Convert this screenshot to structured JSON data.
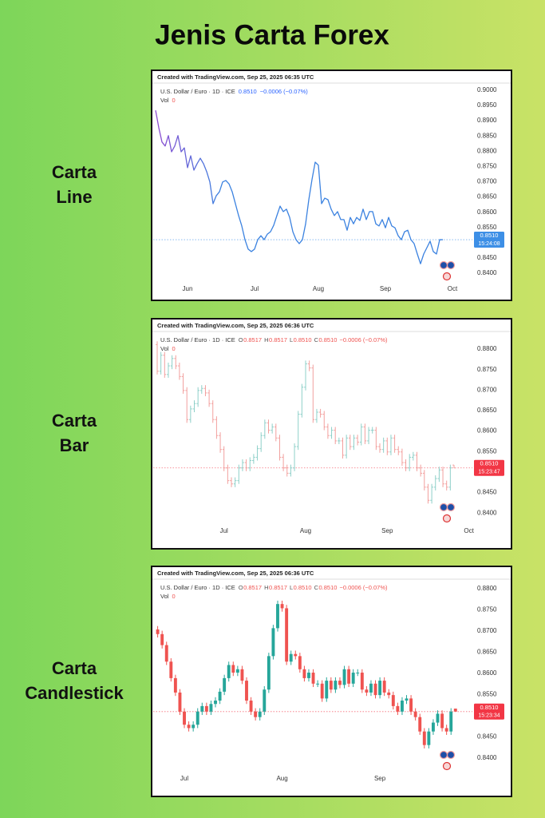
{
  "heading": "Jenis Carta Forex",
  "chart_data": [
    {
      "type": "line",
      "label": [
        "Carta",
        "Line"
      ],
      "source": "Created with TradingView.com, Sep 25, 2025 06:35 UTC",
      "title": "U.S. Dollar / Euro · 1D · ICE",
      "legend_values": [
        "0.8510",
        "−0.0006 (−0.07%)"
      ],
      "legend_color": "#2962ff",
      "volume_label": "Vol",
      "volume": 0,
      "colors": [
        "#8e4bd0",
        "#3b82e0"
      ],
      "last_price": {
        "value": 0.851,
        "label": "0.8510"
      },
      "countdown": "15:24:08",
      "last_price_color": "#3d8fe6",
      "ylim": [
        0.8374,
        0.9018
      ],
      "yticks": [
        {
          "value": 0.84,
          "label": "0.8400"
        },
        {
          "value": 0.845,
          "label": "0.8450"
        },
        {
          "value": 0.85,
          "label": "0.8500"
        },
        {
          "value": 0.855,
          "label": "0.8550"
        },
        {
          "value": 0.86,
          "label": "0.8600"
        },
        {
          "value": 0.865,
          "label": "0.8650"
        },
        {
          "value": 0.87,
          "label": "0.8700"
        },
        {
          "value": 0.875,
          "label": "0.8750"
        },
        {
          "value": 0.88,
          "label": "0.8800"
        },
        {
          "value": 0.885,
          "label": "0.8850"
        },
        {
          "value": 0.89,
          "label": "0.8900"
        },
        {
          "value": 0.895,
          "label": "0.8950"
        },
        {
          "value": 0.9,
          "label": "0.9000"
        }
      ],
      "categories": [
        null,
        null,
        null,
        null,
        null,
        null,
        null,
        null,
        null,
        null,
        "Jun",
        null,
        null,
        null,
        null,
        null,
        null,
        null,
        null,
        null,
        null,
        null,
        null,
        null,
        null,
        null,
        null,
        null,
        null,
        null,
        null,
        "Jul",
        null,
        null,
        null,
        null,
        null,
        null,
        null,
        null,
        null,
        null,
        null,
        null,
        null,
        null,
        null,
        null,
        null,
        null,
        null,
        "Aug",
        null,
        null,
        null,
        null,
        null,
        null,
        null,
        null,
        null,
        null,
        null,
        null,
        null,
        null,
        null,
        null,
        null,
        null,
        null,
        null,
        "Sep",
        null,
        null,
        null,
        null,
        null,
        null,
        null,
        null,
        null,
        null,
        null,
        null,
        null,
        null,
        null,
        null,
        null,
        null,
        null,
        null,
        "Oct"
      ],
      "values": [
        0.8934,
        0.8877,
        0.883,
        0.8817,
        0.8851,
        0.8798,
        0.8817,
        0.8851,
        0.8798,
        0.8811,
        0.8746,
        0.8785,
        0.8738,
        0.8759,
        0.8777,
        0.8759,
        0.8733,
        0.8699,
        0.8628,
        0.8654,
        0.8667,
        0.8699,
        0.8704,
        0.8693,
        0.8667,
        0.8628,
        0.8589,
        0.8555,
        0.851,
        0.8479,
        0.8471,
        0.8479,
        0.851,
        0.8523,
        0.851,
        0.8528,
        0.8536,
        0.8557,
        0.8589,
        0.862,
        0.8602,
        0.861,
        0.8583,
        0.8536,
        0.851,
        0.8497,
        0.851,
        0.8562,
        0.8641,
        0.8707,
        0.8764,
        0.8754,
        0.8628,
        0.8646,
        0.8641,
        0.861,
        0.8589,
        0.8602,
        0.8576,
        0.8576,
        0.8541,
        0.8583,
        0.8562,
        0.8583,
        0.8573,
        0.861,
        0.8576,
        0.8602,
        0.8602,
        0.8562,
        0.8555,
        0.8576,
        0.8549,
        0.8583,
        0.8555,
        0.8549,
        0.8523,
        0.851,
        0.8536,
        0.8541,
        0.851,
        0.8497,
        0.8463,
        0.8431,
        0.8463,
        0.8484,
        0.8505,
        0.8471,
        0.8463,
        0.851,
        0.851,
        null,
        null,
        null
      ]
    },
    {
      "type": "ohlc",
      "label": [
        "Carta",
        "Bar"
      ],
      "source": "Created with TradingView.com, Sep 25, 2025 06:36 UTC",
      "title": "U.S. Dollar / Euro · 1D · ICE",
      "ohlc_legend": [
        {
          "key": "O",
          "value": "0.8517"
        },
        {
          "key": "H",
          "value": "0.8517"
        },
        {
          "key": "L",
          "value": "0.8510"
        },
        {
          "key": "C",
          "value": "0.8510"
        }
      ],
      "legend_values": [
        "−0.0006 (−0.07%)"
      ],
      "legend_color": "#ef5350",
      "volume_label": "Vol",
      "volume": 0,
      "up_color": "#8fd0c9",
      "down_color": "#f2a09e",
      "last_price": {
        "value": 0.851,
        "label": "0.8510"
      },
      "countdown": "15:23:47",
      "last_price_color": "#f23645",
      "ylim": [
        0.8375,
        0.8839
      ],
      "yticks": [
        {
          "value": 0.84,
          "label": "0.8400"
        },
        {
          "value": 0.845,
          "label": "0.8450"
        },
        {
          "value": 0.85,
          "label": "0.8500"
        },
        {
          "value": 0.855,
          "label": "0.8550"
        },
        {
          "value": 0.86,
          "label": "0.8600"
        },
        {
          "value": 0.865,
          "label": "0.8650"
        },
        {
          "value": 0.87,
          "label": "0.8700"
        },
        {
          "value": 0.875,
          "label": "0.8750"
        },
        {
          "value": 0.88,
          "label": "0.8800"
        }
      ],
      "categories": [
        null,
        null,
        null,
        null,
        null,
        null,
        null,
        null,
        null,
        null,
        null,
        null,
        null,
        null,
        null,
        null,
        null,
        null,
        "Jul",
        null,
        null,
        null,
        null,
        null,
        null,
        null,
        null,
        null,
        null,
        null,
        null,
        null,
        null,
        null,
        null,
        null,
        null,
        null,
        null,
        null,
        "Aug",
        null,
        null,
        null,
        null,
        null,
        null,
        null,
        null,
        null,
        null,
        null,
        null,
        null,
        null,
        null,
        null,
        null,
        null,
        null,
        null,
        null,
        "Sep",
        null,
        null,
        null,
        null,
        null,
        null,
        null,
        null,
        null,
        null,
        null,
        null,
        null,
        null,
        null,
        null,
        null,
        null,
        null,
        null,
        null,
        "Oct"
      ],
      "open": [
        0.8811,
        0.8746,
        0.8785,
        0.8738,
        0.8759,
        0.8777,
        0.8759,
        0.8733,
        0.8699,
        0.8628,
        0.8654,
        0.8667,
        0.8699,
        0.8704,
        0.8693,
        0.8667,
        0.8628,
        0.8589,
        0.8555,
        0.851,
        0.8479,
        0.8471,
        0.8479,
        0.851,
        0.8523,
        0.851,
        0.8528,
        0.8536,
        0.8557,
        0.8589,
        0.862,
        0.8602,
        0.861,
        0.8583,
        0.8536,
        0.851,
        0.8497,
        0.851,
        0.8562,
        0.8641,
        0.8707,
        0.8764,
        0.8754,
        0.8628,
        0.8646,
        0.8641,
        0.861,
        0.8589,
        0.8602,
        0.8576,
        0.8576,
        0.8541,
        0.8583,
        0.8562,
        0.8583,
        0.8573,
        0.861,
        0.8576,
        0.8602,
        0.8602,
        0.8562,
        0.8555,
        0.8576,
        0.8549,
        0.8583,
        0.8555,
        0.8549,
        0.8523,
        0.851,
        0.8536,
        0.8541,
        0.851,
        0.8497,
        0.8463,
        0.8431,
        0.8463,
        0.8484,
        0.8505,
        0.8471,
        0.8463,
        0.8517,
        null,
        null,
        null,
        null
      ],
      "high": [
        0.8819,
        0.8793,
        0.8793,
        0.8767,
        0.8785,
        0.8785,
        0.8767,
        0.8741,
        0.8707,
        0.8662,
        0.8675,
        0.8707,
        0.8712,
        0.8712,
        0.8701,
        0.8675,
        0.8636,
        0.8597,
        0.8563,
        0.8518,
        0.8487,
        0.8487,
        0.8518,
        0.8531,
        0.8531,
        0.8536,
        0.8544,
        0.8565,
        0.8597,
        0.8628,
        0.8628,
        0.8618,
        0.8618,
        0.8591,
        0.8544,
        0.8518,
        0.8518,
        0.857,
        0.8649,
        0.8715,
        0.8772,
        0.8772,
        0.8762,
        0.8654,
        0.8654,
        0.8649,
        0.8618,
        0.861,
        0.861,
        0.8584,
        0.8584,
        0.8591,
        0.8591,
        0.8591,
        0.8591,
        0.8618,
        0.8618,
        0.861,
        0.861,
        0.861,
        0.857,
        0.8584,
        0.8584,
        0.8591,
        0.8591,
        0.8563,
        0.8557,
        0.8531,
        0.8544,
        0.8549,
        0.8549,
        0.8518,
        0.8505,
        0.8471,
        0.8471,
        0.8492,
        0.8513,
        0.8513,
        0.8479,
        0.8518,
        0.8517,
        null,
        null,
        null,
        null
      ],
      "low": [
        0.8738,
        0.8738,
        0.873,
        0.873,
        0.8751,
        0.8751,
        0.8725,
        0.8691,
        0.862,
        0.862,
        0.8646,
        0.8659,
        0.8691,
        0.8685,
        0.8659,
        0.862,
        0.8581,
        0.8547,
        0.8502,
        0.8471,
        0.8463,
        0.8463,
        0.8471,
        0.8502,
        0.8502,
        0.8502,
        0.852,
        0.8528,
        0.8549,
        0.8581,
        0.8594,
        0.8594,
        0.8575,
        0.8528,
        0.8502,
        0.8489,
        0.8489,
        0.8502,
        0.8554,
        0.8633,
        0.8699,
        0.8746,
        0.862,
        0.862,
        0.8633,
        0.8602,
        0.8581,
        0.8581,
        0.8568,
        0.8568,
        0.8533,
        0.8533,
        0.8554,
        0.8554,
        0.8565,
        0.8565,
        0.8568,
        0.8568,
        0.8594,
        0.8554,
        0.8547,
        0.8547,
        0.8541,
        0.8541,
        0.8547,
        0.8541,
        0.8515,
        0.8502,
        0.8502,
        0.8528,
        0.8502,
        0.8489,
        0.8455,
        0.8423,
        0.8423,
        0.8455,
        0.8476,
        0.8463,
        0.8455,
        0.8455,
        0.851,
        null,
        null,
        null,
        null
      ],
      "close": [
        0.8746,
        0.8785,
        0.8738,
        0.8759,
        0.8777,
        0.8759,
        0.8733,
        0.8699,
        0.8628,
        0.8654,
        0.8667,
        0.8699,
        0.8704,
        0.8693,
        0.8667,
        0.8628,
        0.8589,
        0.8555,
        0.851,
        0.8479,
        0.8471,
        0.8479,
        0.851,
        0.8523,
        0.851,
        0.8528,
        0.8536,
        0.8557,
        0.8589,
        0.862,
        0.8602,
        0.861,
        0.8583,
        0.8536,
        0.851,
        0.8497,
        0.851,
        0.8562,
        0.8641,
        0.8707,
        0.8764,
        0.8754,
        0.8628,
        0.8646,
        0.8641,
        0.861,
        0.8589,
        0.8602,
        0.8576,
        0.8576,
        0.8541,
        0.8583,
        0.8562,
        0.8583,
        0.8573,
        0.861,
        0.8576,
        0.8602,
        0.8602,
        0.8562,
        0.8555,
        0.8576,
        0.8549,
        0.8583,
        0.8555,
        0.8549,
        0.8523,
        0.851,
        0.8536,
        0.8541,
        0.851,
        0.8497,
        0.8463,
        0.8431,
        0.8463,
        0.8484,
        0.8505,
        0.8471,
        0.8463,
        0.851,
        0.851,
        null,
        null,
        null,
        null
      ]
    },
    {
      "type": "candlestick",
      "label": [
        "Carta",
        "Candlestick"
      ],
      "source": "Created with TradingView.com, Sep 25, 2025 06:36 UTC",
      "title": "U.S. Dollar / Euro · 1D · ICE",
      "ohlc_legend": [
        {
          "key": "O",
          "value": "0.8517"
        },
        {
          "key": "H",
          "value": "0.8517"
        },
        {
          "key": "L",
          "value": "0.8510"
        },
        {
          "key": "C",
          "value": "0.8510"
        }
      ],
      "legend_values": [
        "−0.0006 (−0.07%)"
      ],
      "legend_color": "#ef5350",
      "volume_label": "Vol",
      "volume": 0,
      "up_color": "#26a69a",
      "down_color": "#ef5350",
      "last_price": {
        "value": 0.851,
        "label": "0.8510"
      },
      "countdown": "15:23:34",
      "last_price_color": "#f23645",
      "ylim": [
        0.837,
        0.8819
      ],
      "yticks": [
        {
          "value": 0.84,
          "label": "0.8400"
        },
        {
          "value": 0.845,
          "label": "0.8450"
        },
        {
          "value": 0.85,
          "label": "0.8500"
        },
        {
          "value": 0.855,
          "label": "0.8550"
        },
        {
          "value": 0.86,
          "label": "0.8600"
        },
        {
          "value": 0.865,
          "label": "0.8650"
        },
        {
          "value": 0.87,
          "label": "0.8700"
        },
        {
          "value": 0.875,
          "label": "0.8750"
        },
        {
          "value": 0.88,
          "label": "0.8800"
        }
      ],
      "categories": [
        null,
        null,
        null,
        null,
        null,
        null,
        "Jul",
        null,
        null,
        null,
        null,
        null,
        null,
        null,
        null,
        null,
        null,
        null,
        null,
        null,
        null,
        null,
        null,
        null,
        null,
        null,
        null,
        null,
        "Aug",
        null,
        null,
        null,
        null,
        null,
        null,
        null,
        null,
        null,
        null,
        null,
        null,
        null,
        null,
        null,
        null,
        null,
        null,
        null,
        null,
        null,
        "Sep",
        null,
        null,
        null,
        null,
        null,
        null,
        null,
        null,
        null,
        null,
        null,
        null,
        null,
        null,
        null,
        null,
        null
      ],
      "open": [
        0.8704,
        0.8693,
        0.8667,
        0.8628,
        0.8589,
        0.8555,
        0.851,
        0.8479,
        0.8471,
        0.8479,
        0.851,
        0.8523,
        0.851,
        0.8528,
        0.8536,
        0.8557,
        0.8589,
        0.862,
        0.8602,
        0.861,
        0.8583,
        0.8536,
        0.851,
        0.8497,
        0.851,
        0.8562,
        0.8641,
        0.8707,
        0.8764,
        0.8754,
        0.8628,
        0.8646,
        0.8641,
        0.861,
        0.8589,
        0.8602,
        0.8576,
        0.8576,
        0.8541,
        0.8583,
        0.8562,
        0.8583,
        0.8573,
        0.861,
        0.8576,
        0.8602,
        0.8602,
        0.8562,
        0.8555,
        0.8576,
        0.8549,
        0.8583,
        0.8555,
        0.8549,
        0.8523,
        0.851,
        0.8536,
        0.8541,
        0.851,
        0.8497,
        0.8463,
        0.8431,
        0.8463,
        0.8484,
        0.8505,
        0.8471,
        0.8463,
        0.8517
      ],
      "high": [
        0.8712,
        0.8701,
        0.8675,
        0.8636,
        0.8597,
        0.8563,
        0.8518,
        0.8487,
        0.8487,
        0.8518,
        0.8531,
        0.8531,
        0.8536,
        0.8544,
        0.8565,
        0.8597,
        0.8628,
        0.8628,
        0.8618,
        0.8618,
        0.8591,
        0.8544,
        0.8518,
        0.8518,
        0.857,
        0.8649,
        0.8715,
        0.8772,
        0.8772,
        0.8762,
        0.8654,
        0.8654,
        0.8649,
        0.8618,
        0.861,
        0.861,
        0.8584,
        0.8584,
        0.8591,
        0.8591,
        0.8591,
        0.8591,
        0.8618,
        0.8618,
        0.861,
        0.861,
        0.861,
        0.857,
        0.8584,
        0.8584,
        0.8591,
        0.8591,
        0.8563,
        0.8557,
        0.8531,
        0.8544,
        0.8549,
        0.8549,
        0.8518,
        0.8505,
        0.8471,
        0.8471,
        0.8492,
        0.8513,
        0.8513,
        0.8479,
        0.8518,
        0.8517
      ],
      "low": [
        0.8685,
        0.8659,
        0.862,
        0.8581,
        0.8547,
        0.8502,
        0.8471,
        0.8463,
        0.8463,
        0.8471,
        0.8502,
        0.8502,
        0.8502,
        0.852,
        0.8528,
        0.8549,
        0.8581,
        0.8594,
        0.8594,
        0.8575,
        0.8528,
        0.8502,
        0.8489,
        0.8489,
        0.8502,
        0.8554,
        0.8633,
        0.8699,
        0.8746,
        0.862,
        0.862,
        0.8633,
        0.8602,
        0.8581,
        0.8581,
        0.8568,
        0.8568,
        0.8533,
        0.8533,
        0.8554,
        0.8554,
        0.8565,
        0.8565,
        0.8568,
        0.8568,
        0.8594,
        0.8554,
        0.8547,
        0.8547,
        0.8541,
        0.8541,
        0.8547,
        0.8541,
        0.8515,
        0.8502,
        0.8502,
        0.8528,
        0.8502,
        0.8489,
        0.8455,
        0.8423,
        0.8423,
        0.8455,
        0.8476,
        0.8463,
        0.8455,
        0.8455,
        0.851
      ],
      "close": [
        0.8693,
        0.8667,
        0.8628,
        0.8589,
        0.8555,
        0.851,
        0.8479,
        0.8471,
        0.8479,
        0.851,
        0.8523,
        0.851,
        0.8528,
        0.8536,
        0.8557,
        0.8589,
        0.862,
        0.8602,
        0.861,
        0.8583,
        0.8536,
        0.851,
        0.8497,
        0.851,
        0.8562,
        0.8641,
        0.8707,
        0.8764,
        0.8754,
        0.8628,
        0.8646,
        0.8641,
        0.861,
        0.8589,
        0.8602,
        0.8576,
        0.8576,
        0.8541,
        0.8583,
        0.8562,
        0.8583,
        0.8573,
        0.861,
        0.8576,
        0.8602,
        0.8602,
        0.8562,
        0.8555,
        0.8576,
        0.8549,
        0.8583,
        0.8555,
        0.8549,
        0.8523,
        0.851,
        0.8536,
        0.8541,
        0.851,
        0.8497,
        0.8463,
        0.8431,
        0.8463,
        0.8484,
        0.8505,
        0.8471,
        0.8463,
        0.851,
        0.851
      ]
    }
  ]
}
